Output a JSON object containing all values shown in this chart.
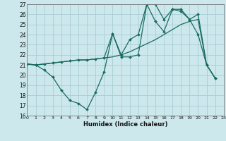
{
  "xlabel": "Humidex (Indice chaleur)",
  "bg_color": "#cce8ec",
  "line_color": "#1a6b60",
  "grid_color": "#a8cdd4",
  "xmin": 0,
  "xmax": 23,
  "ymin": 16,
  "ymax": 27,
  "s1_x": [
    0,
    1,
    2,
    3,
    4,
    5,
    6,
    7,
    8,
    9,
    10,
    11,
    12,
    13,
    14,
    15,
    16,
    17,
    18,
    19,
    20,
    21,
    22
  ],
  "s1_y": [
    21.1,
    21.0,
    20.5,
    19.8,
    18.5,
    17.5,
    17.2,
    16.6,
    18.3,
    20.3,
    24.1,
    21.8,
    21.8,
    22.0,
    27.0,
    27.0,
    25.5,
    26.5,
    26.3,
    25.5,
    24.0,
    21.0,
    19.7
  ],
  "s2_x": [
    0,
    1,
    2,
    3,
    4,
    5,
    6,
    7,
    8,
    9,
    10,
    11,
    12,
    13,
    14,
    15,
    16,
    17,
    18,
    19,
    20,
    21,
    22
  ],
  "s2_y": [
    21.1,
    21.0,
    21.1,
    21.2,
    21.3,
    21.4,
    21.5,
    21.5,
    21.6,
    21.7,
    21.8,
    22.0,
    22.3,
    22.7,
    23.1,
    23.5,
    24.0,
    24.5,
    25.0,
    25.3,
    25.5,
    21.0,
    19.7
  ],
  "s3_x": [
    0,
    1,
    2,
    3,
    4,
    5,
    6,
    7,
    8,
    9,
    10,
    11,
    12,
    13,
    14,
    15,
    16,
    17,
    18,
    19,
    20,
    21,
    22
  ],
  "s3_y": [
    21.1,
    21.0,
    21.1,
    21.2,
    21.3,
    21.4,
    21.5,
    21.5,
    21.6,
    21.7,
    24.1,
    22.0,
    23.5,
    24.0,
    27.0,
    25.3,
    24.3,
    26.5,
    26.5,
    25.5,
    26.0,
    21.0,
    19.7
  ]
}
